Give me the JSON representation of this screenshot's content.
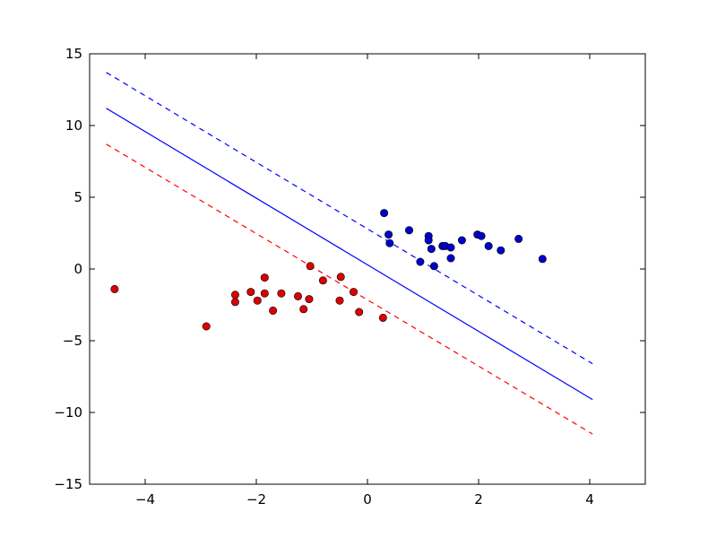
{
  "chart_data": {
    "type": "scatter",
    "xlim": [
      -5,
      5
    ],
    "ylim": [
      -15,
      15
    ],
    "x_ticks": [
      -4,
      -2,
      0,
      2,
      4
    ],
    "y_ticks": [
      -15,
      -10,
      -5,
      0,
      5,
      10,
      15
    ],
    "x_tick_labels": [
      "−4",
      "−2",
      "0",
      "2",
      "4"
    ],
    "y_tick_labels": [
      "−15",
      "−10",
      "−5",
      "0",
      "5",
      "10",
      "15"
    ],
    "grid": false,
    "series": [
      {
        "kind": "points",
        "color": "#0000cc",
        "points": [
          [
            0.3,
            3.9
          ],
          [
            0.38,
            2.4
          ],
          [
            0.4,
            1.8
          ],
          [
            0.75,
            2.7
          ],
          [
            0.95,
            0.5
          ],
          [
            1.1,
            2.3
          ],
          [
            1.1,
            2.0
          ],
          [
            1.15,
            1.4
          ],
          [
            1.2,
            0.2
          ],
          [
            1.35,
            1.6
          ],
          [
            1.4,
            1.6
          ],
          [
            1.5,
            1.5
          ],
          [
            1.5,
            0.75
          ],
          [
            1.7,
            2.0
          ],
          [
            1.98,
            2.4
          ],
          [
            2.05,
            2.3
          ],
          [
            2.18,
            1.6
          ],
          [
            2.4,
            1.3
          ],
          [
            2.72,
            2.1
          ],
          [
            3.15,
            0.7
          ]
        ]
      },
      {
        "kind": "points",
        "color": "#dd0000",
        "points": [
          [
            -4.55,
            -1.4
          ],
          [
            -2.9,
            -4.0
          ],
          [
            -2.38,
            -1.8
          ],
          [
            -2.38,
            -2.3
          ],
          [
            -2.1,
            -1.6
          ],
          [
            -1.98,
            -2.2
          ],
          [
            -1.85,
            -0.6
          ],
          [
            -1.85,
            -1.7
          ],
          [
            -1.7,
            -2.9
          ],
          [
            -1.55,
            -1.7
          ],
          [
            -1.25,
            -1.9
          ],
          [
            -1.15,
            -2.8
          ],
          [
            -1.05,
            -2.1
          ],
          [
            -1.03,
            0.2
          ],
          [
            -0.8,
            -0.8
          ],
          [
            -0.5,
            -2.2
          ],
          [
            -0.48,
            -0.55
          ],
          [
            -0.25,
            -1.6
          ],
          [
            -0.15,
            -3.0
          ],
          [
            0.28,
            -3.4
          ]
        ]
      },
      {
        "kind": "line",
        "color": "#0000ff",
        "style": "solid",
        "x": [
          -4.7,
          4.05
        ],
        "y": [
          11.2,
          -9.1
        ]
      },
      {
        "kind": "line",
        "color": "#0000ff",
        "style": "dashed",
        "x": [
          -4.7,
          4.05
        ],
        "y": [
          13.7,
          -6.6
        ]
      },
      {
        "kind": "line",
        "color": "#ff0000",
        "style": "dashed",
        "x": [
          -4.7,
          4.05
        ],
        "y": [
          8.7,
          -11.5
        ]
      }
    ]
  }
}
